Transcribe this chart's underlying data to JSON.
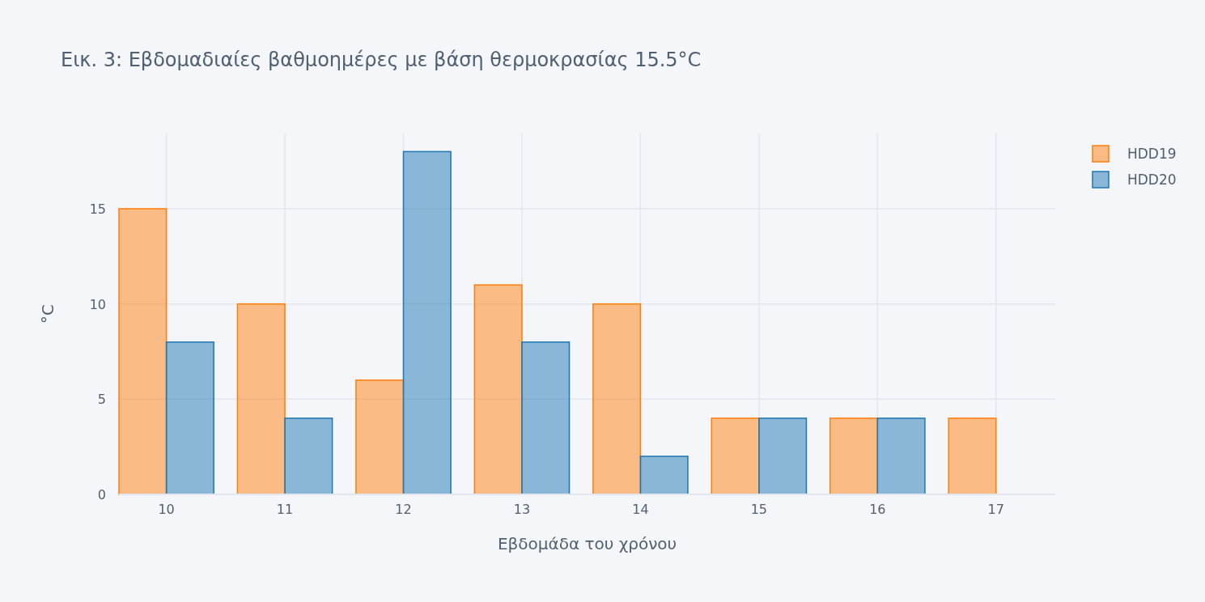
{
  "chart_data": {
    "type": "bar",
    "title": "Εικ. 3: Εβδομαδιαίες βαθμοημέρες με βάση θερμοκρασίας 15.5°C",
    "xlabel": "Εβδομάδα του χρόνου",
    "ylabel": "°C",
    "x": [
      10,
      11,
      12,
      13,
      14,
      15,
      16,
      17
    ],
    "series": [
      {
        "name": "HDD19",
        "color": "#ff7f0e",
        "values": [
          15,
          10,
          6,
          11,
          10,
          4,
          4,
          4
        ]
      },
      {
        "name": "HDD20",
        "color": "#1f77b4",
        "values": [
          8,
          4,
          18,
          8,
          2,
          4,
          4,
          0
        ]
      }
    ],
    "xlim": [
      9.6,
      17.5
    ],
    "xticks": [
      10,
      11,
      12,
      13,
      14,
      15,
      16,
      17
    ],
    "ylim": [
      0,
      18.95
    ],
    "yticks": [
      0,
      5,
      10,
      15
    ],
    "grid": true,
    "legend": "top right"
  }
}
